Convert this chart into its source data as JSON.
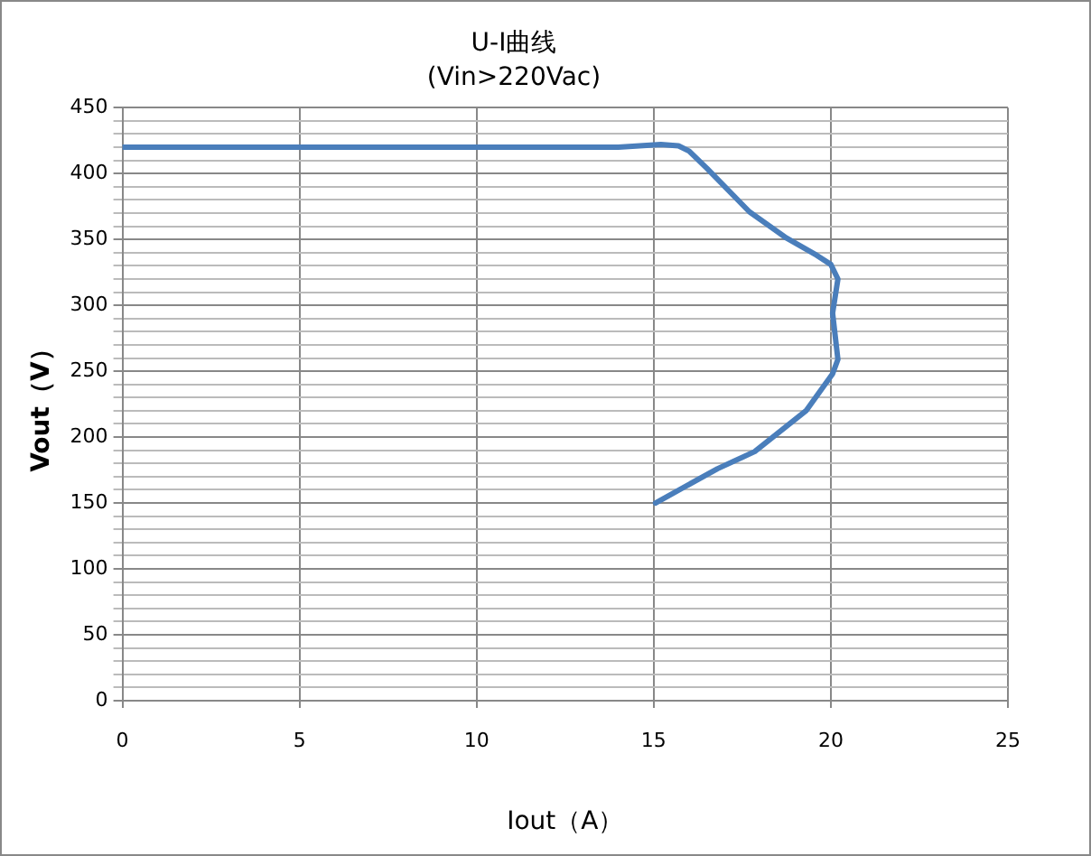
{
  "chart_data": {
    "type": "line",
    "title": "U-I曲线",
    "subtitle": "(Vin>220Vac)",
    "xlabel": "Iout（A）",
    "ylabel": "Vout（V）",
    "series": [
      {
        "color": "#4a7ebb",
        "x": [
          0,
          5,
          10,
          14,
          15.2,
          15.7,
          16.0,
          16.5,
          17.7,
          18.75,
          19.6,
          20.0,
          20.2,
          20.05,
          20.2,
          20.05,
          19.3,
          17.85,
          16.8,
          15.05
        ],
        "values": [
          420,
          420,
          420,
          420,
          422,
          421,
          417,
          404,
          371,
          351,
          338,
          331,
          320,
          294,
          259,
          248,
          220,
          189,
          176,
          150
        ]
      }
    ],
    "xlim": [
      0,
      25
    ],
    "xticks": [
      0,
      5,
      10,
      15,
      20,
      25
    ],
    "ylim": [
      0,
      450
    ],
    "yticks": [
      0,
      {
        "value": 10,
        "label": null
      },
      {
        "value": 20,
        "label": null
      },
      {
        "value": 30,
        "label": null
      },
      {
        "value": 40,
        "label": null
      },
      50,
      {
        "value": 60,
        "label": null
      },
      {
        "value": 70,
        "label": null
      },
      {
        "value": 80,
        "label": null
      },
      {
        "value": 90,
        "label": null
      },
      100,
      {
        "value": 110,
        "label": null
      },
      {
        "value": 120,
        "label": null
      },
      {
        "value": 130,
        "label": null
      },
      {
        "value": 140,
        "label": null
      },
      150,
      {
        "value": 160,
        "label": null
      },
      {
        "value": 170,
        "label": null
      },
      {
        "value": 180,
        "label": null
      },
      {
        "value": 190,
        "label": null
      },
      200,
      {
        "value": 210,
        "label": null
      },
      {
        "value": 220,
        "label": null
      },
      {
        "value": 230,
        "label": null
      },
      {
        "value": 240,
        "label": null
      },
      250,
      {
        "value": 260,
        "label": null
      },
      {
        "value": 270,
        "label": null
      },
      {
        "value": 280,
        "label": null
      },
      {
        "value": 290,
        "label": null
      },
      300,
      {
        "value": 310,
        "label": null
      },
      {
        "value": 320,
        "label": null
      },
      {
        "value": 330,
        "label": null
      },
      {
        "value": 340,
        "label": null
      },
      350,
      {
        "value": 360,
        "label": null
      },
      {
        "value": 370,
        "label": null
      },
      {
        "value": 380,
        "label": null
      },
      {
        "value": 390,
        "label": null
      },
      400,
      {
        "value": 410,
        "label": null
      },
      {
        "value": 420,
        "label": null
      },
      {
        "value": 430,
        "label": null
      },
      {
        "value": 440,
        "label": null
      },
      450
    ],
    "grid": true,
    "legend": false,
    "marker": "none",
    "line_style": "solid"
  }
}
